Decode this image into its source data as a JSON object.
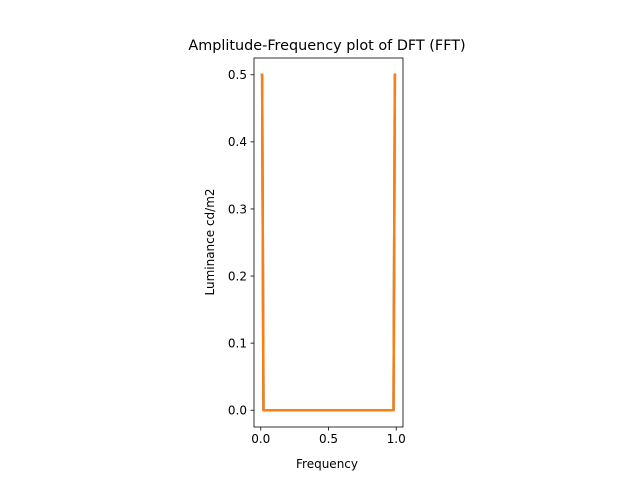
{
  "chart_data": {
    "type": "line",
    "title": "Amplitude-Frequency plot of DFT (FFT)",
    "xlabel": "Frequency",
    "ylabel": "Luminance cd/m2",
    "xlim": [
      -0.05,
      1.05
    ],
    "ylim": [
      -0.025,
      0.525
    ],
    "xticks": [
      0.0,
      0.5,
      1.0
    ],
    "xtick_labels": [
      "0.0",
      "0.5",
      "1.0"
    ],
    "yticks": [
      0.0,
      0.1,
      0.2,
      0.3,
      0.4,
      0.5
    ],
    "ytick_labels": [
      "0.0",
      "0.1",
      "0.2",
      "0.3",
      "0.4",
      "0.5"
    ],
    "grid": false,
    "series": [
      {
        "color": "#1f77b4",
        "x": [
          0.0,
          0.01,
          0.02,
          0.5,
          0.98,
          0.99,
          1.0
        ],
        "y": [
          0.5,
          0.5,
          0.0,
          0.0,
          0.0,
          0.5,
          0.5
        ]
      },
      {
        "color": "#ff7f0e",
        "x": [
          0.0,
          0.01,
          0.02,
          0.5,
          0.98,
          0.99,
          1.0
        ],
        "y": [
          0.5,
          0.5,
          0.0,
          0.0,
          0.0,
          0.5,
          0.5
        ]
      }
    ]
  }
}
